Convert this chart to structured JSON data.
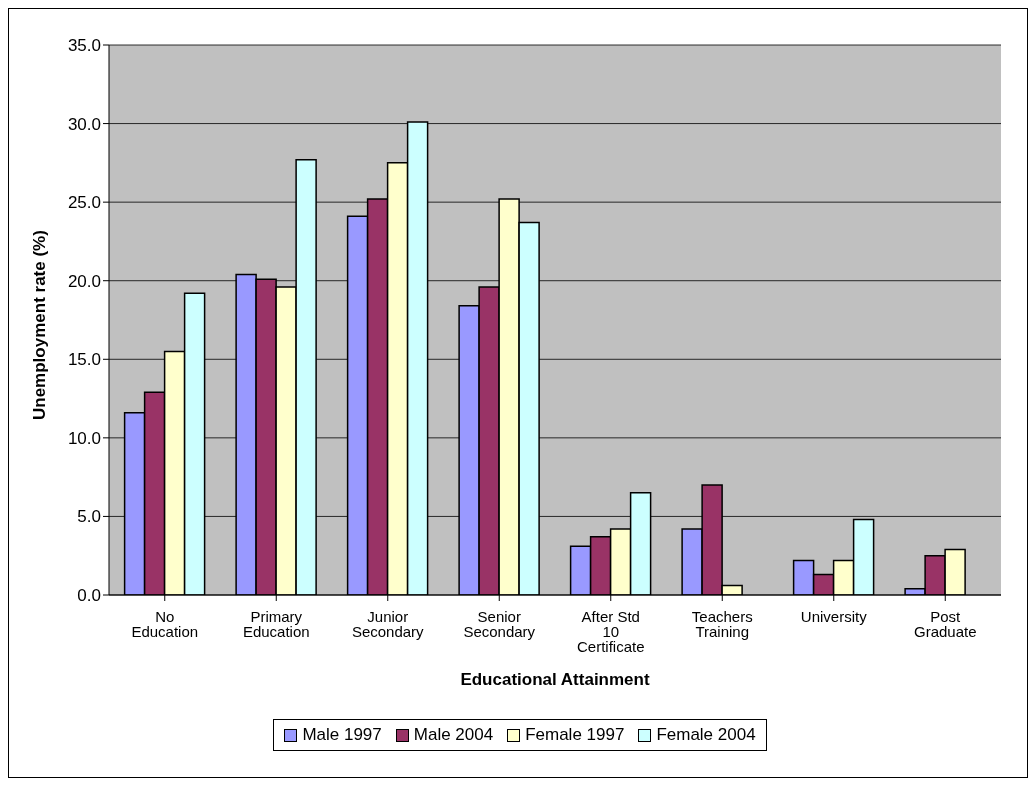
{
  "chart_data": {
    "type": "bar",
    "xlabel": "Educational Attainment",
    "ylabel": "Unemployment rate (%)",
    "categories": [
      "No Education",
      "Primary Education",
      "Junior Secondary",
      "Senior Secondary",
      "After Std 10 Certificate",
      "Teachers Training",
      "University",
      "Post Graduate"
    ],
    "series": [
      {
        "name": "Male 1997",
        "color": "#9999ff",
        "values": [
          11.6,
          20.4,
          24.1,
          18.4,
          3.1,
          4.2,
          2.2,
          0.4
        ]
      },
      {
        "name": "Male 2004",
        "color": "#993366",
        "values": [
          12.9,
          20.1,
          25.2,
          19.6,
          3.7,
          7.0,
          1.3,
          2.5
        ]
      },
      {
        "name": "Female 1997",
        "color": "#ffffcc",
        "values": [
          15.5,
          19.6,
          27.5,
          25.2,
          4.2,
          0.6,
          2.2,
          2.9
        ]
      },
      {
        "name": "Female 2004",
        "color": "#ccffff",
        "values": [
          19.2,
          27.7,
          30.1,
          23.7,
          6.5,
          null,
          4.8,
          null
        ]
      }
    ],
    "ylim": [
      0,
      35
    ],
    "yticks": [
      {
        "value": 0,
        "label": "0.0"
      },
      {
        "value": 5,
        "label": "5.0"
      },
      {
        "value": 10,
        "label": "10.0"
      },
      {
        "value": 15,
        "label": "15.0"
      },
      {
        "value": 20,
        "label": "20.0"
      },
      {
        "value": 25,
        "label": "25.0"
      },
      {
        "value": 30,
        "label": "30.0"
      },
      {
        "value": 35,
        "label": "35.0"
      }
    ],
    "grid": "y",
    "legend": "bottom"
  }
}
